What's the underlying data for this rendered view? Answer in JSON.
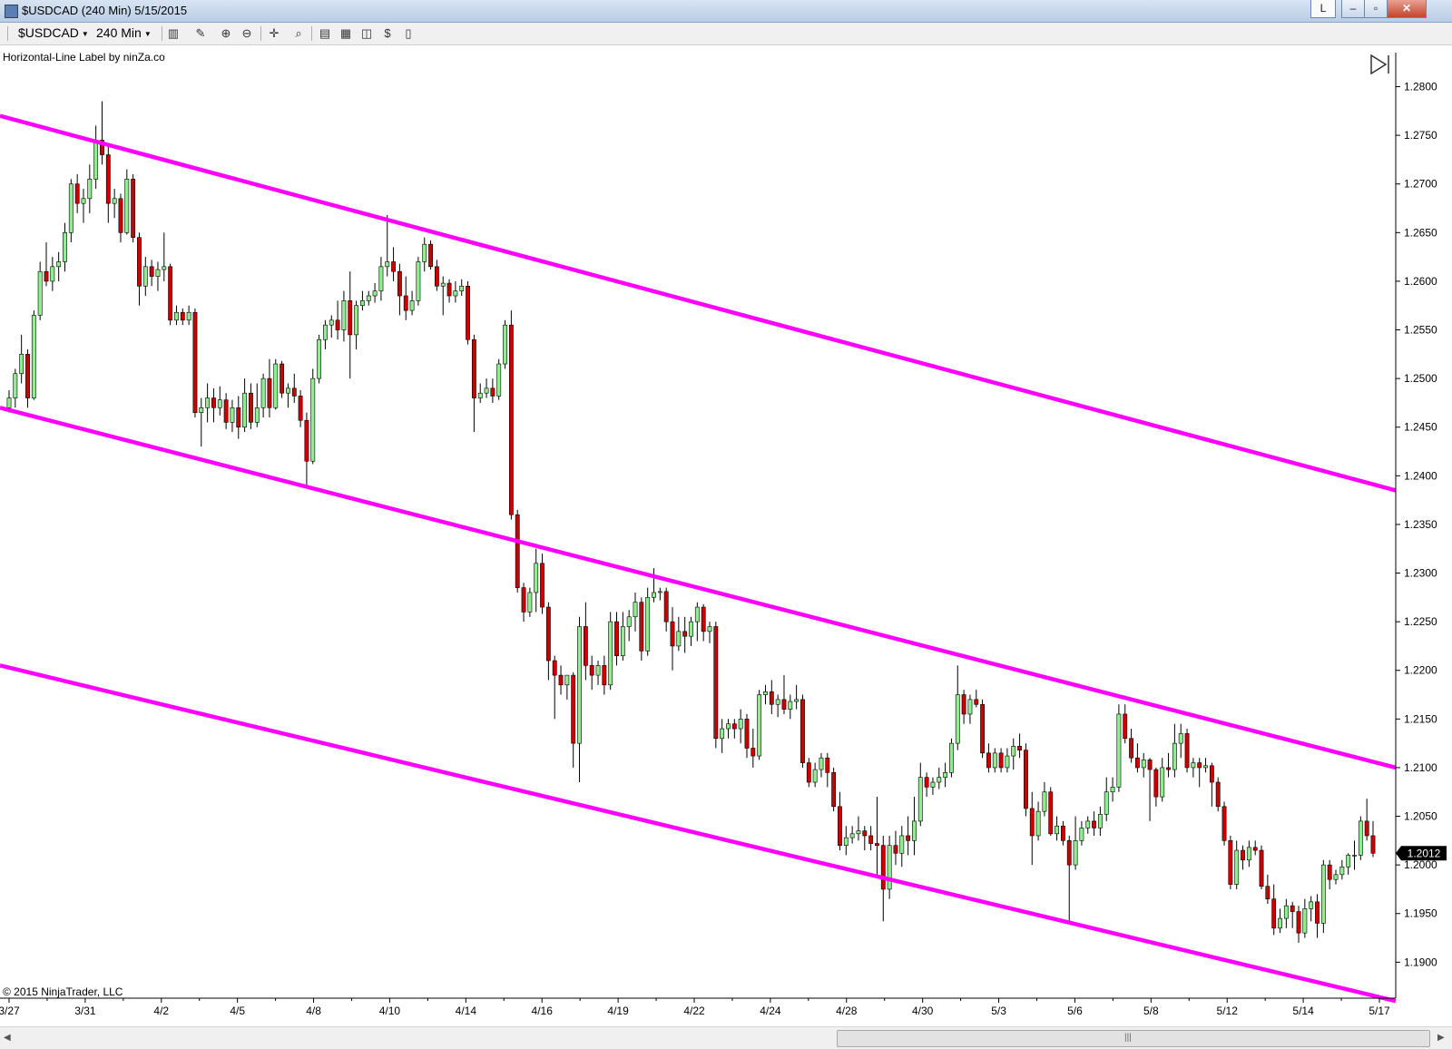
{
  "window": {
    "title": "$USDCAD (240 Min)  5/15/2015",
    "link_button_label": "L",
    "minimize_label": "–",
    "maximize_label": "▫",
    "close_label": "✕"
  },
  "toolbar": {
    "instrument": "$USDCAD",
    "interval": "240 Min",
    "icons": [
      "bar-type-icon",
      "pencil-draw-icon",
      "zoom-in-icon",
      "zoom-out-icon",
      "crosshair-icon",
      "magnify-icon",
      "data-box-icon",
      "chart-style-icon",
      "indicators-icon",
      "strategies-icon",
      "properties-icon"
    ]
  },
  "indicator_label": "Horizontal-Line Label by ninZa.co",
  "copyright": "© 2015 NinjaTrader, LLC",
  "scrollbar": {
    "grip": "|||"
  },
  "colors": {
    "up": "#90ee90",
    "down": "#cc0000",
    "outline": "#000000",
    "channel": "#ff00ff",
    "price_tag_bg": "#000000",
    "price_tag_text": "#ffffff"
  },
  "chart_data": {
    "type": "candlestick",
    "instrument": "$USDCAD",
    "period": "240 Min",
    "y_axis_side": "right",
    "ylim": [
      1.1863,
      1.2835
    ],
    "y_ticks": [
      1.28,
      1.275,
      1.27,
      1.265,
      1.26,
      1.255,
      1.25,
      1.245,
      1.24,
      1.235,
      1.23,
      1.225,
      1.22,
      1.215,
      1.21,
      1.205,
      1.2,
      1.195,
      1.19
    ],
    "y_tick_labels": [
      "1.2800",
      "1.2750",
      "1.2700",
      "1.2650",
      "1.2600",
      "1.2550",
      "1.2500",
      "1.2450",
      "1.2400",
      "1.2350",
      "1.2300",
      "1.2250",
      "1.2200",
      "1.2150",
      "1.2100",
      "1.2050",
      "1.2000",
      "1.1950",
      "1.1900"
    ],
    "x_tick_labels": [
      "3/27",
      "3/31",
      "4/2",
      "4/5",
      "4/8",
      "4/10",
      "4/14",
      "4/16",
      "4/19",
      "4/22",
      "4/24",
      "4/28",
      "4/30",
      "5/3",
      "5/6",
      "5/8",
      "5/12",
      "5/14",
      "5/17"
    ],
    "last_price": "1.2012",
    "channel_lines": [
      {
        "name": "upper",
        "start": 1.277,
        "end": 1.2385
      },
      {
        "name": "middle",
        "start": 1.247,
        "end": 1.21
      },
      {
        "name": "lower",
        "start": 1.2205,
        "end": 1.186
      }
    ],
    "candles": [
      [
        1.247,
        1.2488,
        1.2465,
        1.248
      ],
      [
        1.248,
        1.251,
        1.247,
        1.2505
      ],
      [
        1.2505,
        1.2545,
        1.2495,
        1.2525
      ],
      [
        1.2525,
        1.253,
        1.247,
        1.248
      ],
      [
        1.248,
        1.257,
        1.2478,
        1.2565
      ],
      [
        1.2565,
        1.262,
        1.256,
        1.261
      ],
      [
        1.261,
        1.264,
        1.2595,
        1.26
      ],
      [
        1.26,
        1.2625,
        1.259,
        1.2615
      ],
      [
        1.2615,
        1.263,
        1.26,
        1.262
      ],
      [
        1.262,
        1.266,
        1.261,
        1.265
      ],
      [
        1.265,
        1.2705,
        1.264,
        1.27
      ],
      [
        1.27,
        1.271,
        1.267,
        1.268
      ],
      [
        1.268,
        1.2695,
        1.266,
        1.2685
      ],
      [
        1.2685,
        1.272,
        1.267,
        1.2705
      ],
      [
        1.2705,
        1.276,
        1.2695,
        1.2745
      ],
      [
        1.2745,
        1.2785,
        1.272,
        1.273
      ],
      [
        1.273,
        1.274,
        1.266,
        1.268
      ],
      [
        1.268,
        1.2695,
        1.2665,
        1.2685
      ],
      [
        1.2685,
        1.269,
        1.264,
        1.265
      ],
      [
        1.265,
        1.2715,
        1.2648,
        1.2705
      ],
      [
        1.2705,
        1.271,
        1.264,
        1.2645
      ],
      [
        1.2645,
        1.265,
        1.2575,
        1.2595
      ],
      [
        1.2595,
        1.2625,
        1.2585,
        1.2615
      ],
      [
        1.2615,
        1.2622,
        1.2595,
        1.2605
      ],
      [
        1.2605,
        1.262,
        1.259,
        1.2612
      ],
      [
        1.2612,
        1.265,
        1.26,
        1.2615
      ],
      [
        1.2615,
        1.2618,
        1.2555,
        1.256
      ],
      [
        1.256,
        1.2575,
        1.2555,
        1.2568
      ],
      [
        1.2568,
        1.2572,
        1.2555,
        1.256
      ],
      [
        1.256,
        1.2575,
        1.2555,
        1.2568
      ],
      [
        1.2568,
        1.2572,
        1.246,
        1.2465
      ],
      [
        1.2465,
        1.248,
        1.243,
        1.247
      ],
      [
        1.247,
        1.2495,
        1.2455,
        1.248
      ],
      [
        1.248,
        1.249,
        1.2455,
        1.247
      ],
      [
        1.247,
        1.2492,
        1.2462,
        1.2478
      ],
      [
        1.2478,
        1.2485,
        1.2448,
        1.2455
      ],
      [
        1.2455,
        1.2478,
        1.2445,
        1.247
      ],
      [
        1.247,
        1.2482,
        1.2438,
        1.245
      ],
      [
        1.245,
        1.25,
        1.2445,
        1.2485
      ],
      [
        1.2485,
        1.2495,
        1.2448,
        1.2455
      ],
      [
        1.2455,
        1.2495,
        1.245,
        1.247
      ],
      [
        1.247,
        1.2505,
        1.246,
        1.25
      ],
      [
        1.25,
        1.252,
        1.246,
        1.247
      ],
      [
        1.247,
        1.252,
        1.2468,
        1.2515
      ],
      [
        1.2515,
        1.2518,
        1.248,
        1.2485
      ],
      [
        1.2485,
        1.2495,
        1.247,
        1.249
      ],
      [
        1.249,
        1.2505,
        1.2475,
        1.2482
      ],
      [
        1.2482,
        1.2488,
        1.245,
        1.2457
      ],
      [
        1.2457,
        1.2465,
        1.2388,
        1.2415
      ],
      [
        1.2415,
        1.251,
        1.2412,
        1.25
      ],
      [
        1.25,
        1.2545,
        1.2495,
        1.254
      ],
      [
        1.254,
        1.256,
        1.253,
        1.2555
      ],
      [
        1.2555,
        1.2565,
        1.2542,
        1.256
      ],
      [
        1.256,
        1.258,
        1.254,
        1.255
      ],
      [
        1.255,
        1.259,
        1.2538,
        1.258
      ],
      [
        1.258,
        1.261,
        1.25,
        1.2545
      ],
      [
        1.2545,
        1.258,
        1.253,
        1.2575
      ],
      [
        1.2575,
        1.259,
        1.257,
        1.258
      ],
      [
        1.258,
        1.259,
        1.2575,
        1.2585
      ],
      [
        1.2585,
        1.2598,
        1.2578,
        1.259
      ],
      [
        1.259,
        1.2625,
        1.258,
        1.2615
      ],
      [
        1.2615,
        1.2668,
        1.2605,
        1.262
      ],
      [
        1.262,
        1.2635,
        1.26,
        1.261
      ],
      [
        1.261,
        1.2618,
        1.2565,
        1.2585
      ],
      [
        1.2585,
        1.2605,
        1.256,
        1.257
      ],
      [
        1.257,
        1.259,
        1.2565,
        1.258
      ],
      [
        1.258,
        1.2625,
        1.2575,
        1.262
      ],
      [
        1.262,
        1.2645,
        1.261,
        1.2638
      ],
      [
        1.2638,
        1.2642,
        1.2612,
        1.2615
      ],
      [
        1.2615,
        1.2622,
        1.259,
        1.2595
      ],
      [
        1.2595,
        1.2605,
        1.2565,
        1.2598
      ],
      [
        1.2598,
        1.2602,
        1.2578,
        1.2585
      ],
      [
        1.2585,
        1.26,
        1.2578,
        1.259
      ],
      [
        1.259,
        1.2602,
        1.2585,
        1.2595
      ],
      [
        1.2595,
        1.26,
        1.2535,
        1.254
      ],
      [
        1.254,
        1.2545,
        1.2445,
        1.248
      ],
      [
        1.248,
        1.2495,
        1.2475,
        1.2485
      ],
      [
        1.2485,
        1.25,
        1.248,
        1.249
      ],
      [
        1.249,
        1.25,
        1.2475,
        1.2482
      ],
      [
        1.2482,
        1.252,
        1.2478,
        1.2515
      ],
      [
        1.2515,
        1.256,
        1.251,
        1.2555
      ],
      [
        1.2555,
        1.257,
        1.2355,
        1.236
      ],
      [
        1.236,
        1.2365,
        1.228,
        1.2285
      ],
      [
        1.2285,
        1.229,
        1.225,
        1.226
      ],
      [
        1.226,
        1.2285,
        1.2255,
        1.228
      ],
      [
        1.228,
        1.2325,
        1.226,
        1.231
      ],
      [
        1.231,
        1.232,
        1.2258,
        1.2265
      ],
      [
        1.2265,
        1.227,
        1.219,
        1.221
      ],
      [
        1.221,
        1.2215,
        1.215,
        1.2195
      ],
      [
        1.2195,
        1.2205,
        1.2175,
        1.2185
      ],
      [
        1.2185,
        1.2195,
        1.217,
        1.2195
      ],
      [
        1.2195,
        1.2198,
        1.21,
        1.2125
      ],
      [
        1.2125,
        1.2255,
        1.2085,
        1.2245
      ],
      [
        1.2245,
        1.227,
        1.219,
        1.2205
      ],
      [
        1.2205,
        1.2215,
        1.218,
        1.2195
      ],
      [
        1.2195,
        1.221,
        1.2185,
        1.2205
      ],
      [
        1.2205,
        1.2215,
        1.2175,
        1.2185
      ],
      [
        1.2185,
        1.226,
        1.218,
        1.225
      ],
      [
        1.225,
        1.226,
        1.2205,
        1.2215
      ],
      [
        1.2215,
        1.226,
        1.221,
        1.2245
      ],
      [
        1.2245,
        1.2262,
        1.223,
        1.2255
      ],
      [
        1.2255,
        1.228,
        1.224,
        1.227
      ],
      [
        1.227,
        1.2275,
        1.221,
        1.222
      ],
      [
        1.222,
        1.2285,
        1.2215,
        1.2275
      ],
      [
        1.2275,
        1.2305,
        1.227,
        1.228
      ],
      [
        1.228,
        1.2285,
        1.2272,
        1.2281
      ],
      [
        1.2281,
        1.2285,
        1.224,
        1.225
      ],
      [
        1.225,
        1.2265,
        1.22,
        1.2225
      ],
      [
        1.2225,
        1.2255,
        1.222,
        1.224
      ],
      [
        1.224,
        1.2255,
        1.2218,
        1.2235
      ],
      [
        1.2235,
        1.2255,
        1.2225,
        1.225
      ],
      [
        1.225,
        1.227,
        1.223,
        1.2265
      ],
      [
        1.2265,
        1.2268,
        1.223,
        1.224
      ],
      [
        1.224,
        1.225,
        1.2228,
        1.2245
      ],
      [
        1.2245,
        1.225,
        1.212,
        1.213
      ],
      [
        1.213,
        1.215,
        1.2115,
        1.214
      ],
      [
        1.214,
        1.215,
        1.213,
        1.2145
      ],
      [
        1.2145,
        1.215,
        1.213,
        1.214
      ],
      [
        1.214,
        1.216,
        1.2125,
        1.215
      ],
      [
        1.215,
        1.2155,
        1.211,
        1.212
      ],
      [
        1.212,
        1.214,
        1.21,
        1.2112
      ],
      [
        1.2112,
        1.218,
        1.2108,
        1.2175
      ],
      [
        1.2175,
        1.2185,
        1.2165,
        1.2178
      ],
      [
        1.2178,
        1.219,
        1.2155,
        1.2165
      ],
      [
        1.2165,
        1.2175,
        1.2152,
        1.217
      ],
      [
        1.217,
        1.2195,
        1.2155,
        1.216
      ],
      [
        1.216,
        1.2175,
        1.215,
        1.2168
      ],
      [
        1.2168,
        1.2185,
        1.216,
        1.217
      ],
      [
        1.217,
        1.2175,
        1.21,
        1.2105
      ],
      [
        1.2105,
        1.211,
        1.208,
        1.2085
      ],
      [
        1.2085,
        1.2105,
        1.208,
        1.2098
      ],
      [
        1.2098,
        1.2115,
        1.209,
        1.211
      ],
      [
        1.211,
        1.2115,
        1.208,
        1.2095
      ],
      [
        1.2095,
        1.21,
        1.2055,
        1.206
      ],
      [
        1.206,
        1.2075,
        1.2015,
        1.202
      ],
      [
        1.202,
        1.204,
        1.201,
        1.2028
      ],
      [
        1.2028,
        1.204,
        1.2022,
        1.2032
      ],
      [
        1.2032,
        1.205,
        1.2025,
        1.2035
      ],
      [
        1.2035,
        1.204,
        1.2015,
        1.203
      ],
      [
        1.203,
        1.204,
        1.2015,
        1.2022
      ],
      [
        1.2022,
        1.207,
        1.199,
        1.202
      ],
      [
        1.202,
        1.203,
        1.1942,
        1.1975
      ],
      [
        1.1975,
        1.203,
        1.1965,
        1.202
      ],
      [
        1.202,
        1.2035,
        1.2,
        1.2012
      ],
      [
        1.2012,
        1.204,
        1.1998,
        1.203
      ],
      [
        1.203,
        1.205,
        1.201,
        1.2025
      ],
      [
        1.2025,
        1.207,
        1.201,
        1.2045
      ],
      [
        1.2045,
        1.2105,
        1.204,
        1.209
      ],
      [
        1.209,
        1.2095,
        1.207,
        1.208
      ],
      [
        1.208,
        1.209,
        1.2072,
        1.2085
      ],
      [
        1.2085,
        1.21,
        1.2078,
        1.209
      ],
      [
        1.209,
        1.2105,
        1.208,
        1.2095
      ],
      [
        1.2095,
        1.213,
        1.209,
        1.2125
      ],
      [
        1.2125,
        1.2205,
        1.2118,
        1.2175
      ],
      [
        1.2175,
        1.218,
        1.2145,
        1.2155
      ],
      [
        1.2155,
        1.2175,
        1.2145,
        1.217
      ],
      [
        1.217,
        1.218,
        1.2162,
        1.2165
      ],
      [
        1.2165,
        1.217,
        1.211,
        1.2115
      ],
      [
        1.2115,
        1.2125,
        1.2095,
        1.21
      ],
      [
        1.21,
        1.212,
        1.2095,
        1.2115
      ],
      [
        1.2115,
        1.212,
        1.2095,
        1.21
      ],
      [
        1.21,
        1.212,
        1.2095,
        1.2112
      ],
      [
        1.2112,
        1.213,
        1.2098,
        1.2122
      ],
      [
        1.2122,
        1.2135,
        1.211,
        1.2118
      ],
      [
        1.2118,
        1.2125,
        1.205,
        1.2058
      ],
      [
        1.2058,
        1.2075,
        1.2,
        1.203
      ],
      [
        1.203,
        1.2065,
        1.2025,
        1.2055
      ],
      [
        1.2055,
        1.2085,
        1.205,
        1.2075
      ],
      [
        1.2075,
        1.208,
        1.203,
        1.2032
      ],
      [
        1.2032,
        1.205,
        1.2025,
        1.204
      ],
      [
        1.204,
        1.2045,
        1.202,
        1.2025
      ],
      [
        1.2025,
        1.203,
        1.194,
        1.2
      ],
      [
        1.2,
        1.205,
        1.1995,
        1.2025
      ],
      [
        1.2025,
        1.2045,
        1.202,
        1.2038
      ],
      [
        1.2038,
        1.205,
        1.2032,
        1.2045
      ],
      [
        1.2045,
        1.2055,
        1.203,
        1.2038
      ],
      [
        1.2038,
        1.206,
        1.203,
        1.2052
      ],
      [
        1.2052,
        1.209,
        1.2045,
        1.2075
      ],
      [
        1.2075,
        1.209,
        1.2065,
        1.208
      ],
      [
        1.208,
        1.2165,
        1.2075,
        1.2155
      ],
      [
        1.2155,
        1.2165,
        1.2125,
        1.213
      ],
      [
        1.213,
        1.214,
        1.2105,
        1.211
      ],
      [
        1.211,
        1.2125,
        1.2095,
        1.21
      ],
      [
        1.21,
        1.2115,
        1.209,
        1.2108
      ],
      [
        1.2108,
        1.211,
        1.2045,
        1.2098
      ],
      [
        1.2098,
        1.21,
        1.206,
        1.207
      ],
      [
        1.207,
        1.211,
        1.2065,
        1.21
      ],
      [
        1.21,
        1.2115,
        1.209,
        1.2098
      ],
      [
        1.2098,
        1.2145,
        1.209,
        1.2125
      ],
      [
        1.2125,
        1.2145,
        1.211,
        1.2135
      ],
      [
        1.2135,
        1.214,
        1.2095,
        1.21
      ],
      [
        1.21,
        1.211,
        1.209,
        1.2105
      ],
      [
        1.2105,
        1.211,
        1.208,
        1.21
      ],
      [
        1.21,
        1.211,
        1.2095,
        1.2102
      ],
      [
        1.2102,
        1.2105,
        1.206,
        1.2085
      ],
      [
        1.2085,
        1.209,
        1.2055,
        1.206
      ],
      [
        1.206,
        1.2065,
        1.202,
        1.2025
      ],
      [
        1.2025,
        1.203,
        1.1975,
        1.198
      ],
      [
        1.198,
        1.2025,
        1.1975,
        1.2015
      ],
      [
        1.2015,
        1.202,
        1.1995,
        1.2005
      ],
      [
        1.2005,
        1.2025,
        1.1998,
        1.2018
      ],
      [
        1.2018,
        1.2025,
        1.201,
        1.2015
      ],
      [
        1.2015,
        1.202,
        1.1975,
        1.1978
      ],
      [
        1.1978,
        1.199,
        1.196,
        1.1965
      ],
      [
        1.1965,
        1.198,
        1.1928,
        1.1935
      ],
      [
        1.1935,
        1.1955,
        1.193,
        1.1945
      ],
      [
        1.1945,
        1.1965,
        1.1935,
        1.1958
      ],
      [
        1.1958,
        1.1962,
        1.1935,
        1.1952
      ],
      [
        1.1952,
        1.1958,
        1.192,
        1.193
      ],
      [
        1.193,
        1.1965,
        1.1925,
        1.1955
      ],
      [
        1.1955,
        1.1968,
        1.1942,
        1.1962
      ],
      [
        1.1962,
        1.197,
        1.1925,
        1.194
      ],
      [
        1.194,
        1.2005,
        1.193,
        1.2
      ],
      [
        1.2,
        1.2005,
        1.1975,
        1.1985
      ],
      [
        1.1985,
        1.1995,
        1.198,
        1.199
      ],
      [
        1.199,
        1.2005,
        1.1985,
        1.1998
      ],
      [
        1.1998,
        1.2012,
        1.199,
        1.201
      ],
      [
        1.201,
        1.2025,
        1.1995,
        1.201
      ],
      [
        1.201,
        1.205,
        1.2005,
        1.2045
      ],
      [
        1.2045,
        1.2068,
        1.2025,
        1.203
      ],
      [
        1.203,
        1.2045,
        1.2008,
        1.2012
      ]
    ]
  }
}
